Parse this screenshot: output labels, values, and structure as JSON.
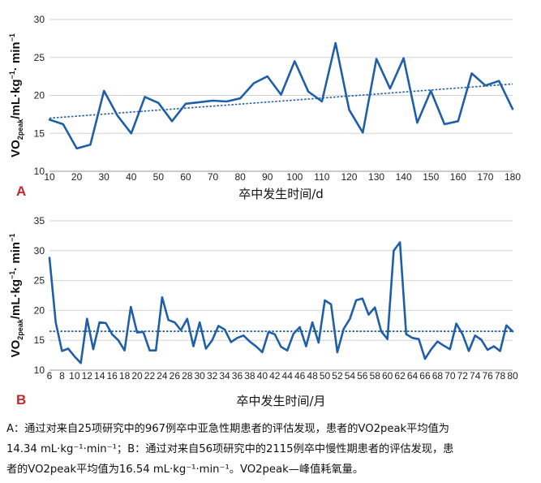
{
  "chart_data": [
    {
      "type": "line",
      "panel_label": "A",
      "xlabel": "卒中发生时间/d",
      "ylabel": "VO2peak/mL·kg⁻¹·min⁻¹",
      "ylabel_parts": {
        "base": "VO",
        "sub": "2peak",
        "unit": "/mL·kg",
        "sup1": "−1",
        "mid": "· min",
        "sup2": "−1"
      },
      "xlim": [
        10,
        180
      ],
      "ylim": [
        10,
        30
      ],
      "xticks": [
        10,
        20,
        30,
        40,
        50,
        60,
        70,
        80,
        90,
        100,
        110,
        120,
        130,
        140,
        150,
        160,
        170,
        180
      ],
      "yticks": [
        10,
        15,
        20,
        25,
        30
      ],
      "grid": "horizontal",
      "series": [
        {
          "x": [
            10,
            15,
            20,
            25,
            30,
            35,
            40,
            45,
            50,
            55,
            60,
            65,
            70,
            75,
            80,
            85,
            90,
            95,
            100,
            105,
            110,
            115,
            120,
            125,
            130,
            135,
            140,
            145,
            150,
            155,
            160,
            165,
            170,
            175,
            180
          ],
          "y": [
            16.8,
            16.2,
            13.0,
            13.5,
            20.6,
            17.3,
            15.0,
            19.8,
            19.0,
            16.6,
            18.9,
            19.1,
            19.3,
            19.2,
            19.6,
            21.6,
            22.5,
            20.1,
            24.5,
            20.5,
            19.2,
            26.9,
            18.1,
            15.1,
            24.8,
            20.9,
            24.9,
            16.4,
            20.6,
            16.2,
            16.6,
            22.9,
            21.3,
            21.9,
            18.2
          ],
          "color": "#1f5ea8"
        }
      ],
      "trendline": {
        "x": [
          10,
          180
        ],
        "y": [
          17.0,
          21.5
        ],
        "style": "dotted",
        "color": "#1f5ea8"
      }
    },
    {
      "type": "line",
      "panel_label": "B",
      "xlabel": "卒中发生时间/月",
      "ylabel": "VO2peak/mL·kg⁻¹·min⁻¹",
      "ylabel_parts": {
        "base": "VO",
        "sub": "2peak",
        "unit": "/mL·kg",
        "sup1": "−1",
        "mid": "· min",
        "sup2": "−1"
      },
      "xlim": [
        6,
        80
      ],
      "ylim": [
        10,
        35
      ],
      "xticks": [
        6,
        8,
        10,
        12,
        14,
        16,
        18,
        20,
        22,
        24,
        26,
        28,
        30,
        32,
        34,
        36,
        38,
        40,
        42,
        44,
        46,
        48,
        50,
        52,
        54,
        56,
        58,
        60,
        62,
        64,
        66,
        68,
        70,
        72,
        74,
        76,
        78,
        80
      ],
      "yticks": [
        10,
        15,
        20,
        25,
        30,
        35
      ],
      "grid": "horizontal",
      "series": [
        {
          "x": [
            6,
            7,
            8,
            9,
            10,
            11,
            12,
            13,
            14,
            15,
            16,
            17,
            18,
            19,
            20,
            21,
            22,
            23,
            24,
            25,
            26,
            27,
            28,
            29,
            30,
            31,
            32,
            33,
            34,
            35,
            36,
            37,
            38,
            39,
            40,
            41,
            42,
            43,
            44,
            45,
            46,
            47,
            48,
            49,
            50,
            51,
            52,
            53,
            54,
            55,
            56,
            57,
            58,
            59,
            60,
            61,
            62,
            63,
            64,
            65,
            66,
            67,
            68,
            69,
            70,
            71,
            72,
            73,
            74,
            75,
            76,
            77,
            78,
            79,
            80
          ],
          "y": [
            28.8,
            18.0,
            13.2,
            13.6,
            12.3,
            11.2,
            18.6,
            13.5,
            18.0,
            17.9,
            16.0,
            15.0,
            13.3,
            20.6,
            16.3,
            16.4,
            13.3,
            13.3,
            22.2,
            18.4,
            18.0,
            16.7,
            18.6,
            14.0,
            18.0,
            13.6,
            15.0,
            17.4,
            16.8,
            14.7,
            15.4,
            15.8,
            14.8,
            14.0,
            13.0,
            16.4,
            16.0,
            13.9,
            13.3,
            16.1,
            17.2,
            14.0,
            18.0,
            14.6,
            21.7,
            21.0,
            13.0,
            16.9,
            18.6,
            21.7,
            22.0,
            19.3,
            20.5,
            16.5,
            15.2,
            30.0,
            31.4,
            16.0,
            15.4,
            15.2,
            11.9,
            13.5,
            14.8,
            14.1,
            13.5,
            17.8,
            16.0,
            13.2,
            15.8,
            15.1,
            13.4,
            14.0,
            13.2,
            17.5,
            16.5
          ],
          "color": "#1f5ea8"
        }
      ],
      "mean_line": {
        "y": 16.5,
        "style": "dotted",
        "color": "#1f5ea8"
      }
    }
  ],
  "caption": {
    "line1": "A：通过对来自25项研究中的967例卒中亚急性期患者的评估发现，患者的VO2peak平均值为",
    "line2": "14.34 mL·kg⁻¹·min⁻¹；B：通过对来自56项研究中的2115例卒中慢性期患者的评估发现，患",
    "line3": "者的VO2peak平均值为16.54 mL·kg⁻¹·min⁻¹。VO2peak—峰值耗氧量。"
  }
}
